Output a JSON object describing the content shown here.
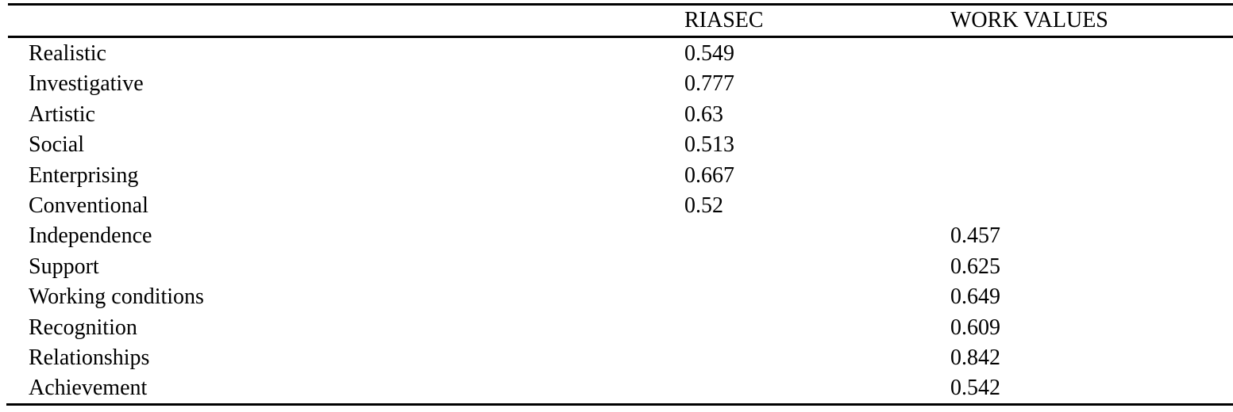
{
  "table": {
    "columns": [
      "",
      "RIASEC",
      "WORK VALUES"
    ],
    "rows": [
      {
        "label": "Realistic",
        "riasec": "0.549",
        "work_values": ""
      },
      {
        "label": "Investigative",
        "riasec": "0.777",
        "work_values": ""
      },
      {
        "label": "Artistic",
        "riasec": "0.63",
        "work_values": ""
      },
      {
        "label": "Social",
        "riasec": "0.513",
        "work_values": ""
      },
      {
        "label": "Enterprising",
        "riasec": "0.667",
        "work_values": ""
      },
      {
        "label": "Conventional",
        "riasec": "0.52",
        "work_values": ""
      },
      {
        "label": "Independence",
        "riasec": "",
        "work_values": "0.457"
      },
      {
        "label": "Support",
        "riasec": "",
        "work_values": "0.625"
      },
      {
        "label": "Working conditions",
        "riasec": "",
        "work_values": "0.649"
      },
      {
        "label": "Recognition",
        "riasec": "",
        "work_values": "0.609"
      },
      {
        "label": "Relationships",
        "riasec": "",
        "work_values": "0.842"
      },
      {
        "label": "Achievement",
        "riasec": "",
        "work_values": "0.542"
      }
    ]
  }
}
